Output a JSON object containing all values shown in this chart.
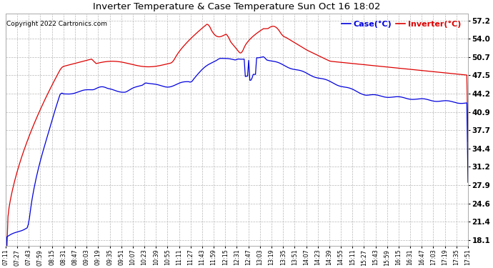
{
  "title": "Inverter Temperature & Case Temperature Sun Oct 16 18:02",
  "copyright": "Copyright 2022 Cartronics.com",
  "legend_case": "Case(°C)",
  "legend_inverter": "Inverter(°C)",
  "yticks": [
    18.1,
    21.4,
    24.6,
    27.9,
    31.2,
    34.4,
    37.7,
    40.9,
    44.2,
    47.5,
    50.7,
    54.0,
    57.2
  ],
  "ylim": [
    17.0,
    58.5
  ],
  "xtick_labels": [
    "07:11",
    "07:27",
    "07:43",
    "07:59",
    "08:15",
    "08:31",
    "08:47",
    "09:03",
    "09:19",
    "09:35",
    "09:51",
    "10:07",
    "10:23",
    "10:39",
    "10:55",
    "11:11",
    "11:27",
    "11:43",
    "11:59",
    "12:15",
    "12:31",
    "12:47",
    "13:03",
    "13:19",
    "13:35",
    "13:51",
    "14:07",
    "14:23",
    "14:39",
    "14:55",
    "15:11",
    "15:27",
    "15:43",
    "15:59",
    "16:15",
    "16:31",
    "16:47",
    "17:03",
    "17:19",
    "17:35",
    "17:51"
  ],
  "bg_color": "#ffffff",
  "plot_bg_color": "#ffffff",
  "grid_color": "#b8b8b8",
  "case_color": "#0000dd",
  "inverter_color": "#dd0000",
  "title_color": "#000000",
  "copyright_color": "#000000"
}
